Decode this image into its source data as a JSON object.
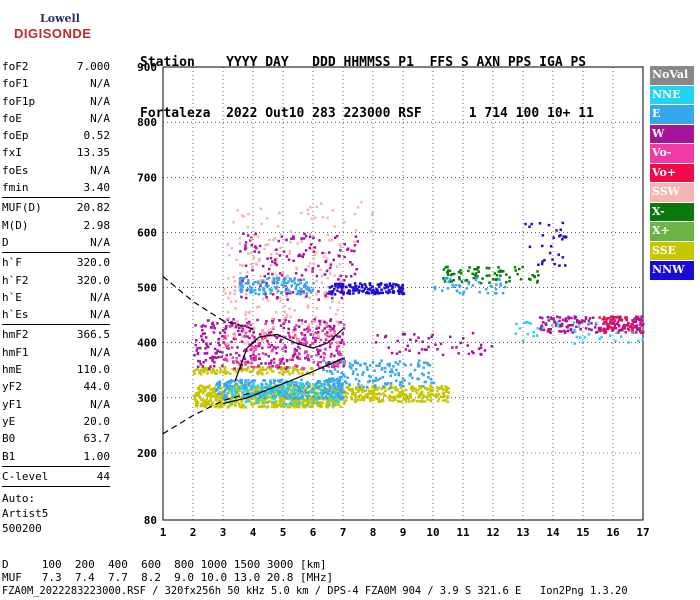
{
  "logo": {
    "line1": "Lowell",
    "line2": "DIGISONDE"
  },
  "header": {
    "line1": "Station    YYYY DAY   DDD HHMMSS P1  FFS S AXN PPS IGA PS",
    "line2": "Fortaleza  2022 Out10 283 223000 RSF      1 714 100 10+ 11"
  },
  "params": {
    "groups": [
      [
        [
          "foF2",
          "7.000"
        ],
        [
          "foF1",
          "N/A"
        ],
        [
          "foF1p",
          "N/A"
        ],
        [
          "foE",
          "N/A"
        ],
        [
          "foEp",
          "0.52"
        ],
        [
          "fxI",
          "13.35"
        ],
        [
          "foEs",
          "N/A"
        ],
        [
          "fmin",
          "3.40"
        ]
      ],
      [
        [
          "MUF(D)",
          "20.82"
        ],
        [
          "M(D)",
          "2.98"
        ],
        [
          "D",
          "N/A"
        ]
      ],
      [
        [
          "h`F",
          "320.0"
        ],
        [
          "h`F2",
          "320.0"
        ],
        [
          "h`E",
          "N/A"
        ],
        [
          "h`Es",
          "N/A"
        ]
      ],
      [
        [
          "hmF2",
          "366.5"
        ],
        [
          "hmF1",
          "N/A"
        ],
        [
          "hmE",
          "110.0"
        ],
        [
          "yF2",
          "44.0"
        ],
        [
          "yF1",
          "N/A"
        ],
        [
          "yE",
          "20.0"
        ],
        [
          "B0",
          "63.7"
        ],
        [
          "B1",
          "1.00"
        ]
      ],
      [
        [
          "C-level",
          "44"
        ]
      ]
    ],
    "auto": [
      "Auto:",
      "Artist5",
      "500200"
    ]
  },
  "legend": [
    {
      "label": "NoVal",
      "color": "#888888"
    },
    {
      "label": "NNE",
      "color": "#22d4f2"
    },
    {
      "label": "E",
      "color": "#36a6ee"
    },
    {
      "label": "W",
      "color": "#a6149a"
    },
    {
      "label": "Vo-",
      "color": "#f23aa6"
    },
    {
      "label": "Vo+",
      "color": "#f00a4a"
    },
    {
      "label": "SSW",
      "color": "#f6b4b4"
    },
    {
      "label": "X-",
      "color": "#0a780a"
    },
    {
      "label": "X+",
      "color": "#6ab446"
    },
    {
      "label": "SSE",
      "color": "#c6c600"
    },
    {
      "label": "NNW",
      "color": "#1a0ad6"
    }
  ],
  "footer": {
    "line1": "D     100  200  400  600  800 1000 1500 3000 [km]",
    "line2": "MUF   7.3  7.4  7.7  8.2  9.0 10.0 13.0 20.8 [MHz]",
    "line3": "FZA0M_2022283223000.RSF / 320fx256h 50 kHz 5.0 km / DPS-4 FZA0M 904 / 3.9 S 321.6 E   Ion2Png 1.3.20"
  },
  "chart_data": {
    "type": "scatter",
    "title": "",
    "xlabel": "",
    "ylabel": "",
    "xlim": [
      1,
      17
    ],
    "ylim": [
      80,
      900
    ],
    "x_ticks": [
      1,
      2,
      3,
      4,
      5,
      6,
      7,
      8,
      9,
      10,
      11,
      12,
      13,
      14,
      15,
      16,
      17
    ],
    "y_ticks": [
      80,
      200,
      300,
      400,
      500,
      600,
      700,
      800,
      900
    ],
    "grid": true,
    "legend_position": "right",
    "clusters": [
      {
        "series": "SSE",
        "x": [
          2.0,
          7.0
        ],
        "y": [
          285,
          325
        ],
        "n": 700
      },
      {
        "series": "SSE",
        "x": [
          7.0,
          10.5
        ],
        "y": [
          295,
          325
        ],
        "n": 260
      },
      {
        "series": "SSE",
        "x": [
          2.0,
          6.0
        ],
        "y": [
          345,
          358
        ],
        "n": 120
      },
      {
        "series": "E",
        "x": [
          2.7,
          7.0
        ],
        "y": [
          300,
          335
        ],
        "n": 300
      },
      {
        "series": "NNE",
        "x": [
          3.0,
          6.8
        ],
        "y": [
          290,
          330
        ],
        "n": 120
      },
      {
        "series": "E",
        "x": [
          6.3,
          10.0
        ],
        "y": [
          320,
          370
        ],
        "n": 160
      },
      {
        "series": "W",
        "x": [
          2.0,
          7.0
        ],
        "y": [
          355,
          445
        ],
        "n": 320
      },
      {
        "series": "Vo-",
        "x": [
          3.0,
          7.0
        ],
        "y": [
          355,
          440
        ],
        "n": 160
      },
      {
        "series": "SSW",
        "x": [
          3.0,
          7.0
        ],
        "y": [
          400,
          600
        ],
        "n": 200
      },
      {
        "series": "W",
        "x": [
          3.5,
          7.5
        ],
        "y": [
          480,
          600
        ],
        "n": 140
      },
      {
        "series": "E",
        "x": [
          3.5,
          6.0
        ],
        "y": [
          490,
          520
        ],
        "n": 120
      },
      {
        "series": "NNW",
        "x": [
          6.5,
          9.0
        ],
        "y": [
          490,
          510
        ],
        "n": 140
      },
      {
        "series": "X-",
        "x": [
          10.3,
          13.5
        ],
        "y": [
          510,
          540
        ],
        "n": 80
      },
      {
        "series": "E",
        "x": [
          10.0,
          12.5
        ],
        "y": [
          490,
          520
        ],
        "n": 40
      },
      {
        "series": "W",
        "x": [
          13.5,
          17.0
        ],
        "y": [
          420,
          450
        ],
        "n": 160
      },
      {
        "series": "Vo+",
        "x": [
          15.5,
          17.0
        ],
        "y": [
          420,
          450
        ],
        "n": 50
      },
      {
        "series": "NNW",
        "x": [
          13.0,
          14.5
        ],
        "y": [
          540,
          620
        ],
        "n": 30
      },
      {
        "series": "NNE",
        "x": [
          12.5,
          17.0
        ],
        "y": [
          400,
          440
        ],
        "n": 40
      },
      {
        "series": "W",
        "x": [
          8.0,
          12.0
        ],
        "y": [
          380,
          420
        ],
        "n": 50
      },
      {
        "series": "SSW",
        "x": [
          3.0,
          8.0
        ],
        "y": [
          570,
          660
        ],
        "n": 40
      }
    ],
    "curves": [
      {
        "name": "trace-lower",
        "x": [
          3.0,
          3.8,
          4.5,
          5.2,
          6.0,
          6.6,
          7.0
        ],
        "y": [
          290,
          300,
          315,
          330,
          348,
          362,
          372
        ]
      },
      {
        "name": "trace-upper",
        "x": [
          3.4,
          3.8,
          4.2,
          4.8,
          5.4,
          6.0,
          6.5,
          7.0
        ],
        "y": [
          330,
          390,
          410,
          415,
          400,
          390,
          400,
          425
        ]
      },
      {
        "name": "dashed-upper",
        "x": [
          1.0,
          2.0,
          3.0,
          4.0
        ],
        "y": [
          520,
          475,
          440,
          425
        ]
      },
      {
        "name": "dashed-lower",
        "x": [
          1.0,
          2.0,
          3.0,
          4.0
        ],
        "y": [
          235,
          268,
          295,
          310
        ]
      }
    ]
  }
}
